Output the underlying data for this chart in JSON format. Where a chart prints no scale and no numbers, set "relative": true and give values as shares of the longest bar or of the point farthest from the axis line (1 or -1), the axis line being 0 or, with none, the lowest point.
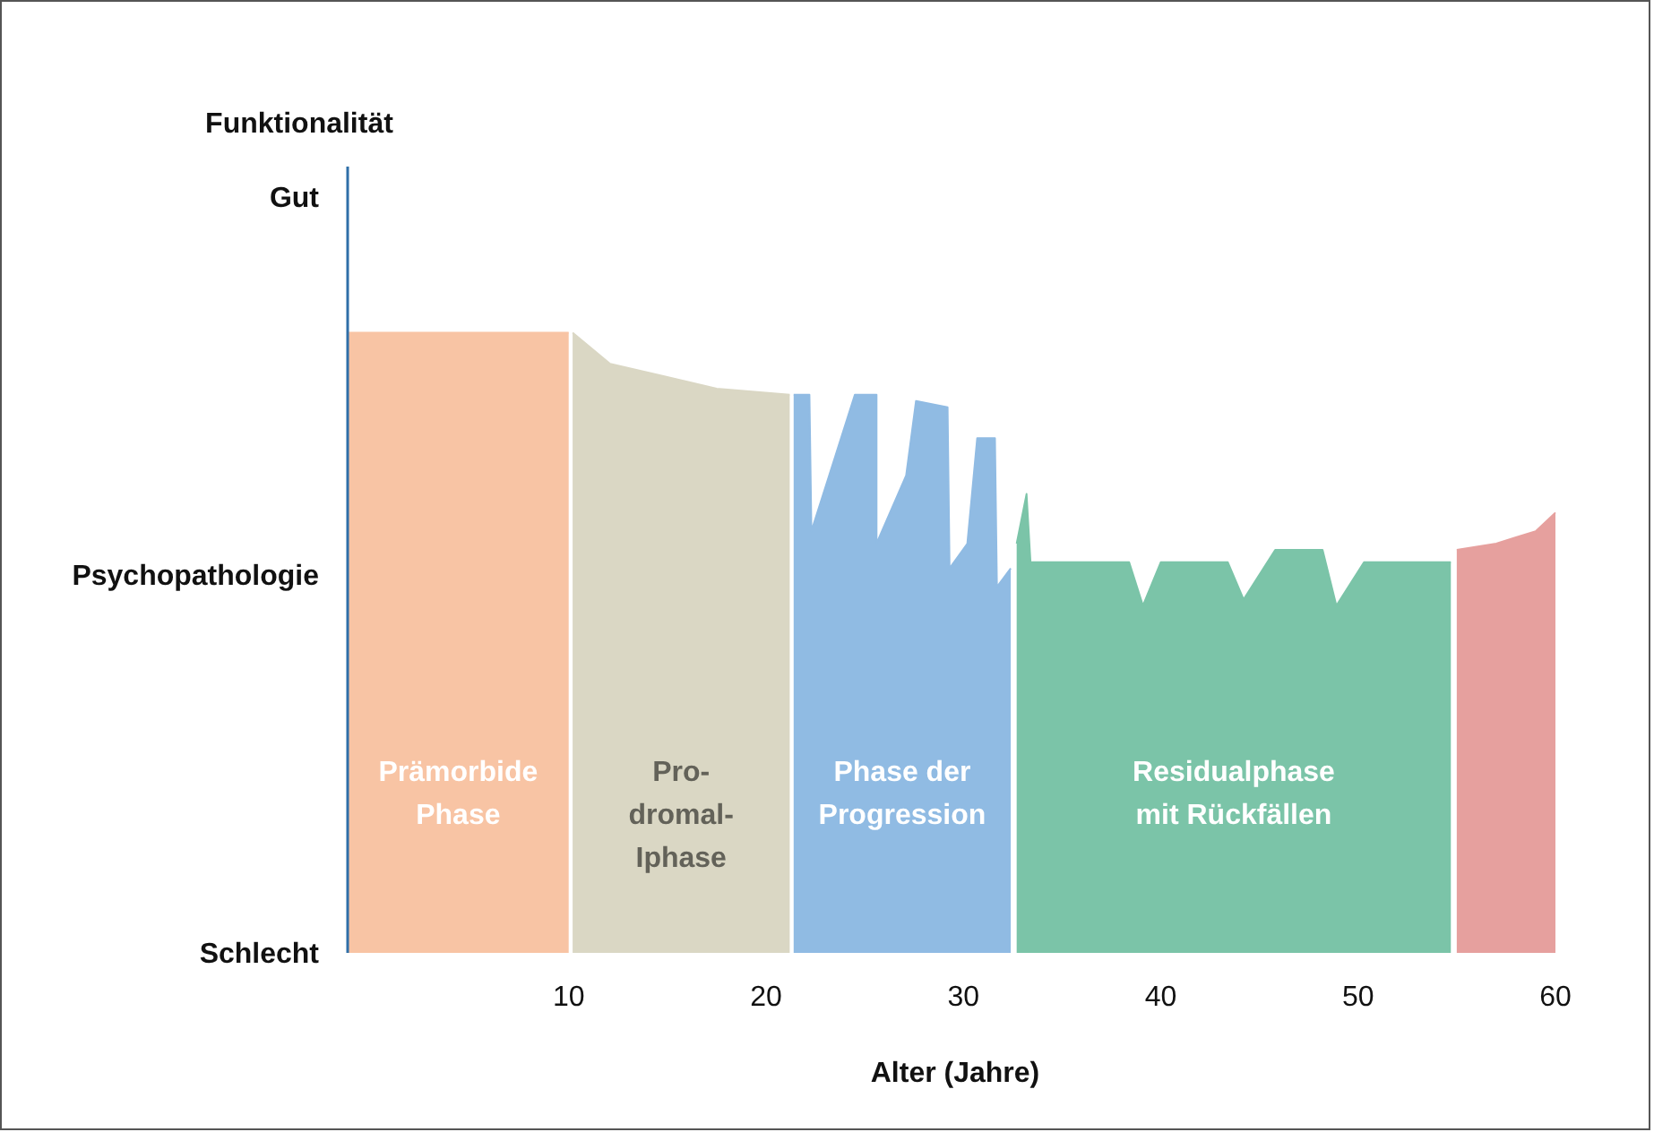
{
  "chart_data": {
    "type": "area",
    "xlabel": "Alter (Jahre)",
    "xlim": [
      -1.2,
      60
    ],
    "xticks": [
      10,
      20,
      30,
      40,
      50,
      60
    ],
    "relative": true,
    "annotations": [
      "Funktionalität",
      "Schlecht",
      "Psychopathologie",
      "Gut"
    ],
    "series": [
      {
        "name": "Prämorbide\nPhase",
        "color": "#f8c4a4",
        "x": [
          -1.2,
          10.0
        ],
        "values": [
          1.0,
          1.0
        ]
      },
      {
        "name": "Pro-\ndromal-\nIphase",
        "color": "#dad7c4",
        "x": [
          10.2,
          12.1,
          14.8,
          17.5,
          21.2
        ],
        "values": [
          1.0,
          0.95,
          0.93,
          0.91,
          0.9
        ]
      },
      {
        "name": "Phase der\nProgression",
        "color": "#90bbe3",
        "x": [
          21.4,
          22.2,
          22.3,
          24.5,
          25.6,
          25.6,
          27.1,
          27.6,
          29.2,
          29.3,
          30.2,
          30.7,
          31.6,
          31.7,
          32.4
        ],
        "values": [
          0.9,
          0.9,
          0.68,
          0.9,
          0.9,
          0.66,
          0.77,
          0.89,
          0.88,
          0.62,
          0.66,
          0.83,
          0.83,
          0.59,
          0.62
        ]
      },
      {
        "name": "Residualphase\nmit Rückfällen",
        "color": "#7bc4a8",
        "x": [
          32.7,
          33.2,
          33.4,
          38.4,
          39.1,
          40.0,
          43.4,
          44.2,
          45.8,
          48.2,
          48.9,
          50.3,
          54.7
        ],
        "values": [
          0.66,
          0.74,
          0.63,
          0.63,
          0.56,
          0.63,
          0.63,
          0.57,
          0.65,
          0.65,
          0.56,
          0.63,
          0.63
        ]
      },
      {
        "color": "#e6a09e",
        "x": [
          55.0,
          56.0,
          57.0,
          58.0,
          59.0,
          60.0
        ],
        "values": [
          0.65,
          0.655,
          0.66,
          0.67,
          0.68,
          0.71
        ]
      }
    ]
  }
}
